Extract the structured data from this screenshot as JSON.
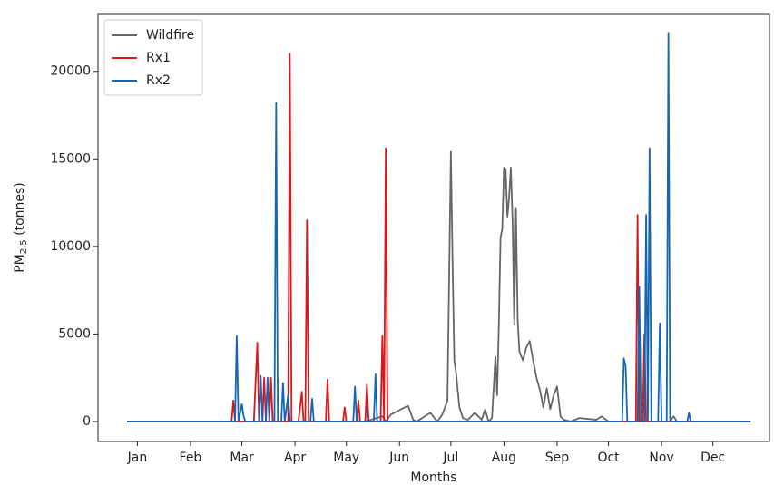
{
  "chart_data": {
    "type": "line",
    "xlabel": "Months",
    "ylabel": [
      "PM",
      "2.5",
      " (tonnes)"
    ],
    "xlim": [
      -16,
      376
    ],
    "ylim": [
      -1140,
      23300
    ],
    "xticks": [
      {
        "value": 7,
        "label": "Jan"
      },
      {
        "value": 38,
        "label": "Feb"
      },
      {
        "value": 68,
        "label": "Mar"
      },
      {
        "value": 99,
        "label": "Apr"
      },
      {
        "value": 129,
        "label": "May"
      },
      {
        "value": 160,
        "label": "Jun"
      },
      {
        "value": 190,
        "label": "Jul"
      },
      {
        "value": 221,
        "label": "Aug"
      },
      {
        "value": 252,
        "label": "Sep"
      },
      {
        "value": 282,
        "label": "Oct"
      },
      {
        "value": 313,
        "label": "Nov"
      },
      {
        "value": 343,
        "label": "Dec"
      }
    ],
    "yticks": [
      0,
      5000,
      10000,
      15000,
      20000
    ],
    "legend": "upper-left",
    "grid": false,
    "series": [
      {
        "name": "Wildfire",
        "color": "#666666",
        "x": [
          1,
          140,
          150,
          152,
          155,
          165,
          168,
          170,
          178,
          182,
          185,
          188,
          190,
          191,
          192,
          193,
          195,
          197,
          200,
          204,
          208,
          210,
          212,
          214,
          216,
          217,
          218,
          219,
          220,
          221,
          222,
          223,
          224,
          225,
          226,
          227,
          228,
          229,
          230,
          232,
          234,
          236,
          238,
          240,
          242,
          244,
          246,
          248,
          250,
          252,
          254,
          256,
          260,
          265,
          275,
          278,
          282,
          300,
          318,
          320,
          322,
          365
        ],
        "values": [
          0,
          0,
          300,
          0,
          400,
          900,
          100,
          0,
          500,
          0,
          400,
          1200,
          15400,
          9000,
          3500,
          2800,
          800,
          200,
          100,
          500,
          100,
          700,
          0,
          200,
          3700,
          1500,
          5500,
          10500,
          11000,
          14500,
          14400,
          11700,
          12800,
          14500,
          11500,
          5500,
          12200,
          5800,
          4000,
          3500,
          4200,
          4600,
          3500,
          2500,
          1800,
          800,
          1900,
          700,
          1500,
          2000,
          300,
          100,
          0,
          200,
          100,
          300,
          0,
          0,
          0,
          300,
          0,
          0
        ]
      },
      {
        "name": "Rx1",
        "color": "#d7191c",
        "x": [
          1,
          62,
          63,
          64,
          75,
          77,
          78,
          80,
          81,
          82,
          84,
          85,
          86,
          95,
          96,
          97,
          101,
          103,
          104,
          105,
          106,
          107,
          117,
          118,
          119,
          127,
          128,
          129,
          135,
          136,
          137,
          140,
          141,
          142,
          149,
          150,
          151,
          152,
          153,
          298,
          299,
          300,
          302,
          303,
          304,
          365
        ],
        "values": [
          0,
          0,
          1200,
          0,
          0,
          4500,
          0,
          0,
          2500,
          0,
          0,
          2500,
          0,
          0,
          21000,
          0,
          0,
          1700,
          0,
          0,
          11500,
          0,
          0,
          2400,
          0,
          0,
          800,
          0,
          0,
          1200,
          0,
          0,
          2100,
          0,
          0,
          4900,
          0,
          15600,
          0,
          0,
          11800,
          0,
          0,
          5000,
          0,
          0
        ]
      },
      {
        "name": "Rx2",
        "color": "#1366b3",
        "x": [
          1,
          64,
          65,
          66,
          68,
          69,
          70,
          78,
          79,
          80,
          82,
          83,
          84,
          87,
          88,
          89,
          91,
          92,
          93,
          95,
          96,
          108,
          109,
          110,
          133,
          134,
          135,
          145,
          146,
          147,
          290,
          291,
          292,
          293,
          299,
          300,
          301,
          303,
          304,
          305,
          306,
          307,
          311,
          312,
          313,
          316,
          317,
          318,
          328,
          329,
          330,
          365
        ],
        "values": [
          0,
          0,
          4900,
          0,
          1000,
          300,
          0,
          0,
          2600,
          0,
          0,
          2500,
          0,
          0,
          18200,
          0,
          0,
          2200,
          0,
          1500,
          0,
          0,
          1300,
          0,
          0,
          2000,
          0,
          0,
          2700,
          0,
          0,
          3600,
          3200,
          0,
          0,
          7700,
          0,
          0,
          11800,
          0,
          15600,
          0,
          0,
          5600,
          0,
          0,
          22200,
          0,
          0,
          500,
          0,
          0
        ]
      }
    ]
  }
}
